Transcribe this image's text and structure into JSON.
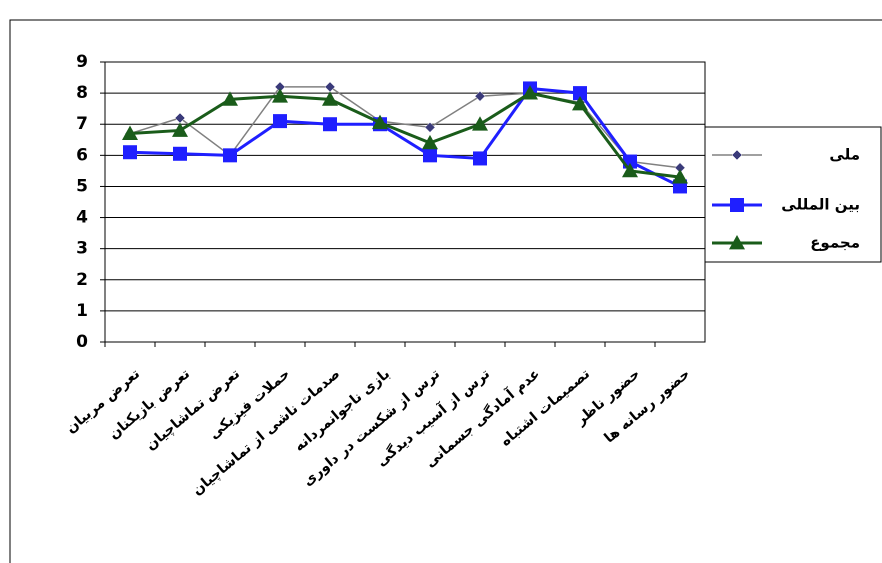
{
  "chart_data": {
    "type": "line",
    "categories": [
      "تعرض مربیان",
      "تعرض بازیکنان",
      "تعرض تماشاچیان",
      "حملات فیزیکی",
      "صدمات ناشی از تماشاچیان",
      "بازی ناجوانمردانه",
      "ترس از شکست در داوری",
      "ترس از آسیب دیدگی",
      "عدم آمادگی جسمانی",
      "تصمیمات اشتباه",
      "حضور ناظر",
      "حضور رسانه ها"
    ],
    "series": [
      {
        "name": "ملی",
        "color": "#808080",
        "marker": "diamond",
        "values": [
          6.7,
          7.2,
          6.0,
          8.2,
          8.2,
          7.1,
          6.9,
          7.9,
          8.0,
          7.7,
          5.8,
          5.6
        ]
      },
      {
        "name": "بین المللی",
        "color": "#1f1fff",
        "marker": "square",
        "values": [
          6.1,
          6.05,
          6.0,
          7.1,
          7.0,
          7.0,
          6.0,
          5.9,
          8.15,
          8.0,
          5.8,
          5.0
        ]
      },
      {
        "name": "مجموع",
        "color": "#1a5c1a",
        "marker": "triangle",
        "values": [
          6.7,
          6.8,
          7.8,
          7.9,
          7.8,
          7.05,
          6.4,
          7.0,
          8.0,
          7.65,
          5.5,
          5.3
        ]
      }
    ],
    "ylim": [
      0,
      9
    ],
    "yticks": [
      0,
      1,
      2,
      3,
      4,
      5,
      6,
      7,
      8,
      9
    ],
    "grid": true,
    "legend": "right"
  }
}
